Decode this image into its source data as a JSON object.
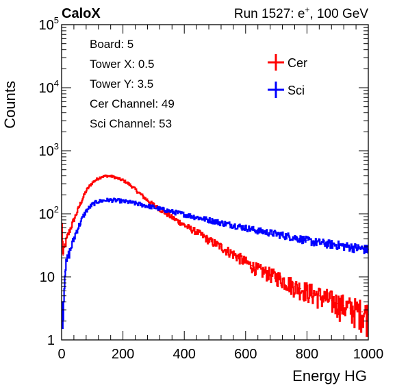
{
  "header": {
    "brand": "CaloX",
    "run": "Run 1527: e",
    "run_sup": "+",
    "run_tail": ", 100 GeV"
  },
  "info_box": {
    "lines": [
      "Board: 5",
      "Tower X: 0.5",
      "Tower Y: 3.5",
      "Cer Channel: 49",
      "Sci Channel: 53"
    ]
  },
  "chart_data": {
    "type": "line",
    "xlabel": "Energy HG",
    "ylabel": "Counts",
    "xlim": [
      0,
      1000
    ],
    "ylim": [
      1,
      100000
    ],
    "y_scale": "log",
    "x_ticks": [
      "0",
      "200",
      "400",
      "600",
      "800",
      "1000"
    ],
    "y_ticks": [
      {
        "value": 1,
        "base": "1",
        "exp": ""
      },
      {
        "value": 10,
        "base": "10",
        "exp": ""
      },
      {
        "value": 100,
        "base": "10",
        "exp": "2"
      },
      {
        "value": 1000,
        "base": "10",
        "exp": "3"
      },
      {
        "value": 10000,
        "base": "10",
        "exp": "4"
      },
      {
        "value": 100000,
        "base": "10",
        "exp": "5"
      }
    ],
    "legend_position": "top-right",
    "grid": false,
    "series": [
      {
        "name": "Cer",
        "color": "#ff0000",
        "x": [
          0,
          5,
          10,
          20,
          30,
          40,
          50,
          60,
          70,
          80,
          90,
          100,
          110,
          120,
          130,
          140,
          150,
          160,
          170,
          180,
          190,
          200,
          210,
          220,
          230,
          240,
          250,
          260,
          270,
          280,
          290,
          300,
          310,
          320,
          330,
          340,
          350,
          360,
          370,
          380,
          390,
          400,
          420,
          440,
          460,
          480,
          500,
          520,
          540,
          560,
          580,
          600,
          620,
          640,
          660,
          680,
          700,
          720,
          740,
          760,
          780,
          800,
          820,
          840,
          860,
          880,
          900,
          920,
          940,
          960,
          980,
          1000
        ],
        "y": [
          90,
          22,
          30,
          45,
          60,
          80,
          105,
          140,
          180,
          230,
          270,
          310,
          340,
          365,
          385,
          395,
          400,
          395,
          385,
          370,
          355,
          340,
          320,
          295,
          270,
          245,
          220,
          200,
          180,
          165,
          150,
          140,
          128,
          118,
          110,
          102,
          95,
          88,
          82,
          76,
          72,
          66,
          58,
          52,
          45,
          38,
          34,
          30,
          26,
          23,
          20,
          17,
          15,
          13,
          12,
          11,
          10,
          9,
          8,
          7,
          6.5,
          6,
          5.5,
          5,
          4.6,
          4.2,
          3.8,
          3.5,
          3.2,
          3,
          2.8,
          2.5
        ]
      },
      {
        "name": "Sci",
        "color": "#0000ff",
        "x": [
          0,
          5,
          10,
          20,
          30,
          40,
          50,
          60,
          70,
          80,
          90,
          100,
          110,
          120,
          130,
          140,
          150,
          160,
          170,
          180,
          190,
          200,
          220,
          240,
          260,
          280,
          300,
          320,
          340,
          360,
          380,
          400,
          420,
          440,
          460,
          480,
          500,
          520,
          540,
          560,
          580,
          600,
          620,
          640,
          660,
          680,
          700,
          720,
          740,
          760,
          780,
          800,
          820,
          840,
          860,
          880,
          900,
          920,
          940,
          960,
          980,
          1000
        ],
        "y": [
          4,
          2.5,
          12,
          20,
          28,
          40,
          55,
          70,
          90,
          110,
          125,
          140,
          150,
          157,
          160,
          163,
          165,
          165,
          164,
          163,
          161,
          158,
          153,
          147,
          140,
          133,
          127,
          120,
          114,
          108,
          103,
          98,
          93,
          88,
          84,
          80,
          76,
          72,
          69,
          66,
          63,
          60,
          57,
          54,
          52,
          50,
          48,
          46,
          44,
          42,
          40,
          38,
          36,
          35,
          34,
          33,
          32,
          31,
          30,
          29,
          28,
          27
        ]
      }
    ]
  }
}
